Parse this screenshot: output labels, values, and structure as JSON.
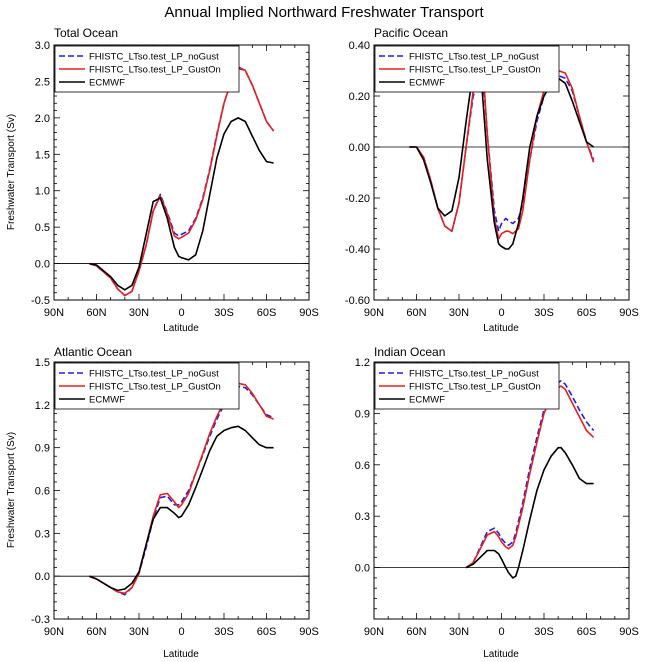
{
  "title": "Annual Implied Northward Freshwater Transport",
  "xlabel": "Latitude",
  "ylabel": "Freshwater Transport (Sv)",
  "legend_labels": [
    "FHISTC_LTso.test_LP_noGust",
    "FHISTC_LTso.test_LP_GustOn",
    "ECMWF"
  ],
  "colors": {
    "noGust": "#1f1fe6",
    "gustOn": "#e61f1f",
    "ecmwf": "#000000"
  },
  "chart_data": [
    {
      "id": "total",
      "type": "line",
      "title": "Total Ocean",
      "xlabel": "Latitude",
      "ylabel": "Freshwater Transport (Sv)",
      "x_ticks": [
        90,
        60,
        30,
        0,
        -30,
        -60,
        -90
      ],
      "x_tick_labels": [
        "90N",
        "60N",
        "30N",
        "0",
        "30S",
        "60S",
        "90S"
      ],
      "xlim": [
        90,
        -90
      ],
      "ylim": [
        -0.5,
        3.0
      ],
      "y_ticks": [
        -0.5,
        0.0,
        0.5,
        1.0,
        1.5,
        2.0,
        2.5,
        3.0
      ],
      "y_tick_labels": [
        "-0.5",
        "0.0",
        "0.5",
        "1.0",
        "1.5",
        "2.0",
        "2.5",
        "3.0"
      ],
      "zero_line": true,
      "series": [
        {
          "name": "FHISTC_LTso.test_LP_noGust",
          "style": "dashed",
          "x": [
            65,
            60,
            50,
            45,
            40,
            35,
            30,
            25,
            20,
            15,
            10,
            5,
            2,
            0,
            -5,
            -10,
            -15,
            -20,
            -25,
            -30,
            -35,
            -40,
            -45,
            -50,
            -55,
            -60,
            -65
          ],
          "y": [
            0.0,
            -0.03,
            -0.2,
            -0.35,
            -0.44,
            -0.38,
            -0.1,
            0.25,
            0.72,
            0.95,
            0.7,
            0.42,
            0.38,
            0.4,
            0.45,
            0.62,
            0.9,
            1.3,
            1.78,
            2.2,
            2.5,
            2.68,
            2.65,
            2.45,
            2.2,
            1.95,
            1.82
          ]
        },
        {
          "name": "FHISTC_LTso.test_LP_GustOn",
          "style": "solid",
          "x": [
            65,
            60,
            50,
            45,
            40,
            35,
            30,
            25,
            20,
            15,
            10,
            5,
            2,
            0,
            -5,
            -10,
            -15,
            -20,
            -25,
            -30,
            -35,
            -40,
            -45,
            -50,
            -55,
            -60,
            -65
          ],
          "y": [
            0.0,
            -0.03,
            -0.2,
            -0.35,
            -0.44,
            -0.38,
            -0.1,
            0.25,
            0.72,
            0.93,
            0.68,
            0.38,
            0.34,
            0.36,
            0.42,
            0.6,
            0.88,
            1.28,
            1.76,
            2.2,
            2.5,
            2.7,
            2.65,
            2.45,
            2.2,
            1.95,
            1.82
          ]
        },
        {
          "name": "ECMWF",
          "style": "solid",
          "x": [
            65,
            60,
            50,
            45,
            40,
            35,
            30,
            25,
            20,
            15,
            10,
            5,
            2,
            0,
            -5,
            -10,
            -15,
            -20,
            -25,
            -30,
            -35,
            -40,
            -45,
            -50,
            -55,
            -60,
            -65
          ],
          "y": [
            0.0,
            -0.02,
            -0.18,
            -0.3,
            -0.36,
            -0.3,
            -0.05,
            0.4,
            0.85,
            0.9,
            0.62,
            0.22,
            0.1,
            0.08,
            0.05,
            0.12,
            0.45,
            0.95,
            1.45,
            1.78,
            1.95,
            2.0,
            1.95,
            1.75,
            1.55,
            1.4,
            1.38
          ]
        }
      ]
    },
    {
      "id": "pacific",
      "type": "line",
      "title": "Pacific Ocean",
      "xlabel": "Latitude",
      "ylabel": "",
      "x_ticks": [
        90,
        60,
        30,
        0,
        -30,
        -60,
        -90
      ],
      "x_tick_labels": [
        "90N",
        "60N",
        "30N",
        "0",
        "30S",
        "60S",
        "90S"
      ],
      "xlim": [
        90,
        -90
      ],
      "ylim": [
        -0.6,
        0.4
      ],
      "y_ticks": [
        -0.6,
        -0.4,
        -0.2,
        0.0,
        0.2,
        0.4
      ],
      "y_tick_labels": [
        "-0.60",
        "-0.40",
        "-0.20",
        "0.00",
        "0.20",
        "0.40"
      ],
      "zero_line": true,
      "series": [
        {
          "name": "FHISTC_LTso.test_LP_noGust",
          "style": "dashed",
          "x": [
            65,
            60,
            55,
            50,
            45,
            40,
            35,
            30,
            25,
            20,
            15,
            12,
            10,
            5,
            2,
            0,
            -3,
            -5,
            -8,
            -12,
            -15,
            -20,
            -25,
            -30,
            -35,
            -40,
            -45,
            -50,
            -55,
            -60,
            -65
          ],
          "y": [
            0.0,
            0.0,
            -0.04,
            -0.13,
            -0.24,
            -0.31,
            -0.33,
            -0.22,
            0.0,
            0.2,
            0.27,
            0.2,
            0.05,
            -0.25,
            -0.33,
            -0.3,
            -0.28,
            -0.29,
            -0.3,
            -0.28,
            -0.22,
            -0.05,
            0.1,
            0.2,
            0.25,
            0.28,
            0.27,
            0.22,
            0.12,
            0.02,
            -0.05
          ]
        },
        {
          "name": "FHISTC_LTso.test_LP_GustOn",
          "style": "solid",
          "x": [
            65,
            60,
            55,
            50,
            45,
            40,
            35,
            30,
            25,
            20,
            15,
            12,
            10,
            5,
            2,
            0,
            -3,
            -5,
            -8,
            -12,
            -15,
            -20,
            -25,
            -30,
            -35,
            -40,
            -45,
            -50,
            -55,
            -60,
            -65
          ],
          "y": [
            0.0,
            0.0,
            -0.04,
            -0.13,
            -0.24,
            -0.31,
            -0.33,
            -0.22,
            0.0,
            0.22,
            0.29,
            0.22,
            0.05,
            -0.28,
            -0.36,
            -0.34,
            -0.33,
            -0.33,
            -0.34,
            -0.32,
            -0.25,
            -0.05,
            0.12,
            0.22,
            0.28,
            0.3,
            0.29,
            0.23,
            0.12,
            0.02,
            -0.06
          ]
        },
        {
          "name": "ECMWF",
          "style": "solid",
          "x": [
            65,
            60,
            55,
            50,
            45,
            40,
            35,
            30,
            25,
            20,
            17,
            15,
            12,
            10,
            5,
            2,
            0,
            -3,
            -5,
            -8,
            -12,
            -15,
            -20,
            -25,
            -30,
            -35,
            -40,
            -45,
            -50,
            -55,
            -60,
            -65
          ],
          "y": [
            0.0,
            0.0,
            -0.05,
            -0.14,
            -0.24,
            -0.27,
            -0.25,
            -0.12,
            0.1,
            0.3,
            0.36,
            0.32,
            0.1,
            -0.05,
            -0.3,
            -0.38,
            -0.39,
            -0.4,
            -0.4,
            -0.38,
            -0.3,
            -0.2,
            0.0,
            0.12,
            0.2,
            0.25,
            0.27,
            0.25,
            0.18,
            0.1,
            0.02,
            0.0
          ]
        }
      ]
    },
    {
      "id": "atlantic",
      "type": "line",
      "title": "Atlantic Ocean",
      "xlabel": "Latitude",
      "ylabel": "Freshwater Transport (Sv)",
      "x_ticks": [
        90,
        60,
        30,
        0,
        -30,
        -60,
        -90
      ],
      "x_tick_labels": [
        "90N",
        "60N",
        "30N",
        "0",
        "30S",
        "60S",
        "90S"
      ],
      "xlim": [
        90,
        -90
      ],
      "ylim": [
        -0.3,
        1.5
      ],
      "y_ticks": [
        -0.3,
        0.0,
        0.3,
        0.6,
        0.9,
        1.2,
        1.5
      ],
      "y_tick_labels": [
        "-0.3",
        "0.0",
        "0.3",
        "0.6",
        "0.9",
        "1.2",
        "1.5"
      ],
      "zero_line": true,
      "series": [
        {
          "name": "FHISTC_LTso.test_LP_noGust",
          "style": "dashed",
          "x": [
            65,
            60,
            50,
            45,
            40,
            35,
            30,
            25,
            20,
            15,
            10,
            5,
            2,
            0,
            -5,
            -10,
            -15,
            -20,
            -25,
            -30,
            -35,
            -40,
            -45,
            -50,
            -55,
            -60,
            -65
          ],
          "y": [
            0.0,
            -0.02,
            -0.08,
            -0.11,
            -0.13,
            -0.08,
            0.02,
            0.2,
            0.4,
            0.55,
            0.56,
            0.5,
            0.5,
            0.52,
            0.6,
            0.72,
            0.85,
            0.98,
            1.1,
            1.2,
            1.28,
            1.33,
            1.32,
            1.27,
            1.2,
            1.13,
            1.11
          ]
        },
        {
          "name": "FHISTC_LTso.test_LP_GustOn",
          "style": "solid",
          "x": [
            65,
            60,
            50,
            45,
            40,
            35,
            30,
            25,
            20,
            15,
            10,
            5,
            2,
            0,
            -5,
            -10,
            -15,
            -20,
            -25,
            -30,
            -35,
            -40,
            -45,
            -50,
            -55,
            -60,
            -65
          ],
          "y": [
            0.0,
            -0.02,
            -0.08,
            -0.11,
            -0.12,
            -0.08,
            0.02,
            0.22,
            0.42,
            0.57,
            0.58,
            0.52,
            0.48,
            0.5,
            0.58,
            0.72,
            0.86,
            1.0,
            1.12,
            1.22,
            1.3,
            1.35,
            1.34,
            1.28,
            1.2,
            1.12,
            1.1
          ]
        },
        {
          "name": "ECMWF",
          "style": "solid",
          "x": [
            65,
            60,
            50,
            45,
            40,
            35,
            30,
            25,
            20,
            15,
            10,
            5,
            2,
            0,
            -5,
            -10,
            -15,
            -20,
            -25,
            -30,
            -35,
            -40,
            -45,
            -50,
            -55,
            -60,
            -65
          ],
          "y": [
            0.0,
            -0.02,
            -0.08,
            -0.1,
            -0.09,
            -0.05,
            0.03,
            0.22,
            0.4,
            0.48,
            0.48,
            0.44,
            0.41,
            0.42,
            0.5,
            0.62,
            0.75,
            0.88,
            0.98,
            1.02,
            1.04,
            1.05,
            1.02,
            0.97,
            0.92,
            0.9,
            0.9
          ]
        }
      ]
    },
    {
      "id": "indian",
      "type": "line",
      "title": "Indian Ocean",
      "xlabel": "Latitude",
      "ylabel": "",
      "x_ticks": [
        90,
        60,
        30,
        0,
        -30,
        -60,
        -90
      ],
      "x_tick_labels": [
        "90N",
        "60N",
        "30N",
        "0",
        "30S",
        "60S",
        "90S"
      ],
      "xlim": [
        90,
        -90
      ],
      "ylim": [
        -0.3,
        1.2
      ],
      "y_ticks": [
        0.0,
        0.3,
        0.6,
        0.9,
        1.2
      ],
      "y_tick_labels": [
        "0.0",
        "0.3",
        "0.6",
        "0.9",
        "1.2"
      ],
      "zero_line": true,
      "series": [
        {
          "name": "FHISTC_LTso.test_LP_noGust",
          "style": "dashed",
          "x": [
            25,
            20,
            15,
            10,
            5,
            2,
            0,
            -3,
            -5,
            -8,
            -10,
            -15,
            -20,
            -25,
            -30,
            -35,
            -40,
            -42,
            -45,
            -50,
            -55,
            -60,
            -65
          ],
          "y": [
            0.0,
            0.03,
            0.12,
            0.21,
            0.23,
            0.2,
            0.17,
            0.14,
            0.13,
            0.15,
            0.2,
            0.38,
            0.58,
            0.76,
            0.92,
            1.03,
            1.08,
            1.09,
            1.07,
            1.0,
            0.92,
            0.85,
            0.8
          ]
        },
        {
          "name": "FHISTC_LTso.test_LP_GustOn",
          "style": "solid",
          "x": [
            25,
            20,
            15,
            10,
            5,
            2,
            0,
            -3,
            -5,
            -8,
            -10,
            -15,
            -20,
            -25,
            -30,
            -35,
            -40,
            -42,
            -45,
            -50,
            -55,
            -60,
            -65
          ],
          "y": [
            0.0,
            0.03,
            0.11,
            0.19,
            0.21,
            0.18,
            0.15,
            0.12,
            0.11,
            0.13,
            0.18,
            0.35,
            0.55,
            0.73,
            0.9,
            1.0,
            1.05,
            1.06,
            1.04,
            0.96,
            0.88,
            0.8,
            0.76
          ]
        },
        {
          "name": "ECMWF",
          "style": "solid",
          "x": [
            25,
            20,
            15,
            10,
            5,
            2,
            0,
            -3,
            -5,
            -8,
            -10,
            -12,
            -15,
            -20,
            -25,
            -30,
            -35,
            -40,
            -42,
            -45,
            -50,
            -55,
            -60,
            -65
          ],
          "y": [
            0.0,
            0.02,
            0.06,
            0.1,
            0.1,
            0.08,
            0.05,
            0.0,
            -0.03,
            -0.06,
            -0.05,
            0.0,
            0.1,
            0.28,
            0.45,
            0.57,
            0.65,
            0.7,
            0.7,
            0.67,
            0.6,
            0.52,
            0.49,
            0.49
          ]
        }
      ]
    }
  ]
}
